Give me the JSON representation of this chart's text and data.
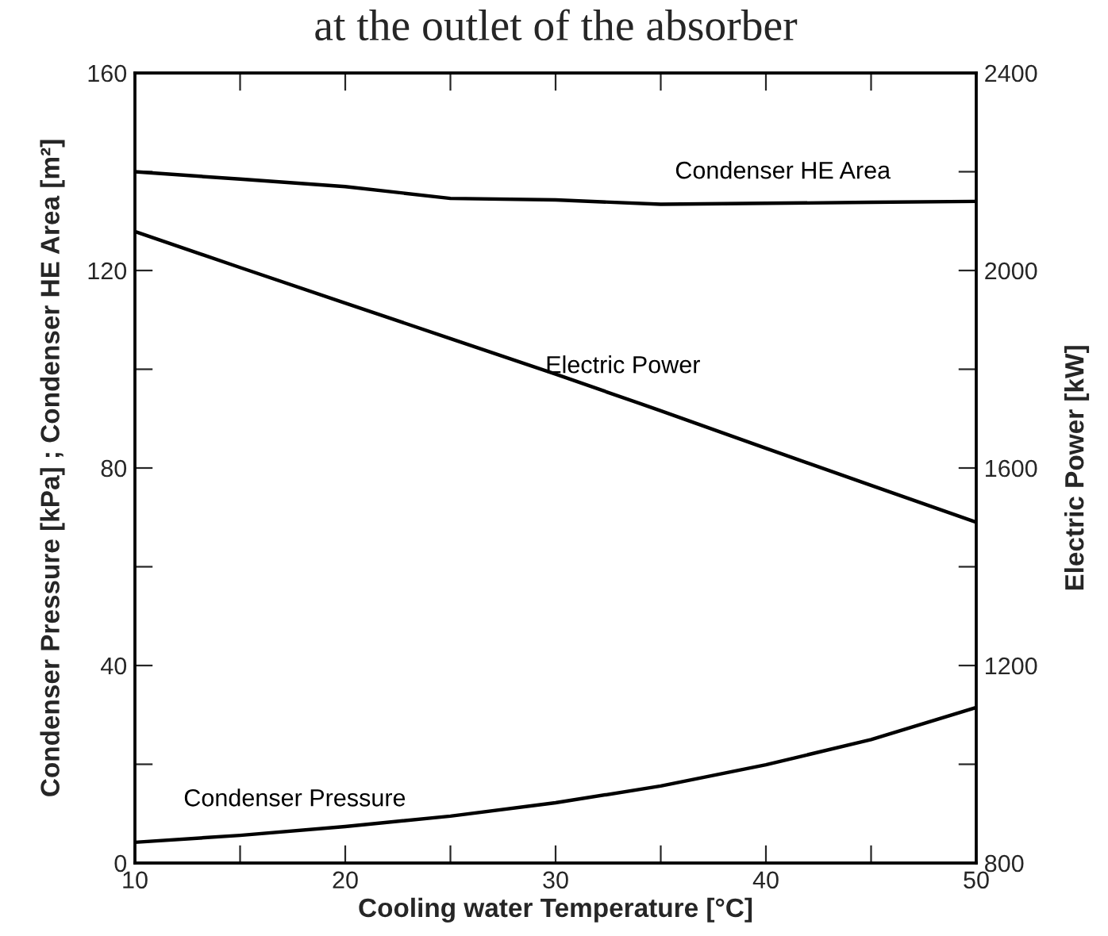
{
  "chart_data": {
    "type": "line",
    "title": "at the outlet of the absorber",
    "xlabel": "Cooling water Temperature [°C]",
    "ylabel": "Condenser Pressure [kPa] ; Condenser HE Area [m²]",
    "y2label": "Electric Power [kW]",
    "x": [
      10,
      15,
      20,
      25,
      30,
      35,
      40,
      45,
      50
    ],
    "series": [
      {
        "name": "Condenser HE Area",
        "color": "#000000",
        "values": [
          140.0,
          138.5,
          137.0,
          134.6,
          134.3,
          133.4,
          133.6,
          133.8,
          134.0
        ]
      },
      {
        "name": "Electric Power",
        "color": "#000000",
        "axis": "y2",
        "values": [
          2079,
          2006,
          1934,
          1862,
          1790,
          1716,
          1640,
          1565,
          1490
        ]
      },
      {
        "name": "Condenser Pressure",
        "color": "#000000",
        "values": [
          4.2,
          5.6,
          7.4,
          9.5,
          12.2,
          15.6,
          19.9,
          25.0,
          31.5
        ]
      }
    ],
    "xlim": [
      10,
      50
    ],
    "xticks": [
      10,
      {
        "value": 15,
        "label": null
      },
      20,
      {
        "value": 25,
        "label": null
      },
      30,
      {
        "value": 35,
        "label": null
      },
      40,
      {
        "value": 45,
        "label": null
      },
      50
    ],
    "ylim": [
      0,
      160
    ],
    "yticks": [
      0,
      {
        "value": 20,
        "label": null
      },
      40,
      {
        "value": 60,
        "label": null
      },
      80,
      {
        "value": 100,
        "label": null
      },
      120,
      {
        "value": 140,
        "label": null
      },
      160
    ],
    "y2lim": [
      800,
      2400
    ],
    "y2ticks": [
      800,
      {
        "value": 1000,
        "label": null
      },
      1200,
      {
        "value": 1400,
        "label": null
      },
      1600,
      {
        "value": 1800,
        "label": null
      },
      2000,
      {
        "value": 2200,
        "label": null
      },
      2400
    ],
    "grid": false,
    "legend": false,
    "marker": "none",
    "line_style": "solid"
  }
}
